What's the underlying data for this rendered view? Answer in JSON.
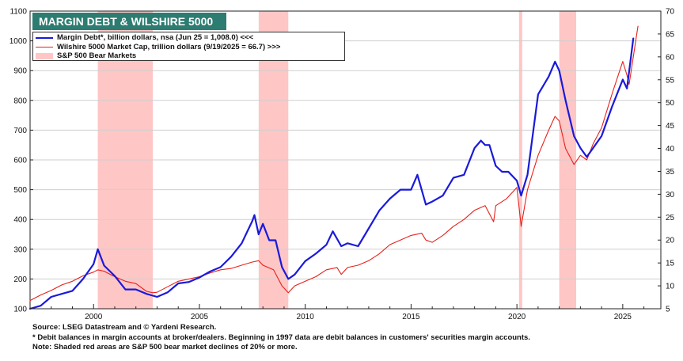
{
  "title": "MARGIN DEBT & WILSHIRE 5000",
  "legend": {
    "margin_debt": "Margin Debt*, billion dollars, nsa (Jun 25 = 1,008.0) <<<",
    "wilshire": "Wilshire 5000 Market Cap, trillion dollars  (9/19/2025 = 66.7) >>>",
    "bear": "S&P 500 Bear Markets"
  },
  "footnotes": {
    "source": "Source: LSEG Datastream and © Yardeni Research.",
    "note1": "* Debit balances in margin accounts at broker/dealers. Beginning in 1997 data are debit balances in customers' securities margin accounts.",
    "note2": "Note: Shaded red areas are S&P 500 bear market declines of 20% or more."
  },
  "colors": {
    "margin_debt": "#1a1adb",
    "wilshire": "#e8201a",
    "bear_shade": "#ffc6c6",
    "title_bg": "#2d7c71"
  },
  "chart_data": {
    "type": "line",
    "title": "MARGIN DEBT & WILSHIRE 5000",
    "x_axis": {
      "range": [
        1997.0,
        2026.8
      ],
      "ticks": [
        2000,
        2005,
        2010,
        2015,
        2020,
        2025
      ]
    },
    "y_left": {
      "range": [
        100,
        1100
      ],
      "ticks": [
        100,
        200,
        300,
        400,
        500,
        600,
        700,
        800,
        900,
        1000,
        1100
      ]
    },
    "y_right": {
      "range": [
        5,
        70
      ],
      "ticks": [
        5,
        10,
        15,
        20,
        25,
        30,
        35,
        40,
        45,
        50,
        55,
        60,
        65,
        70
      ]
    },
    "bear_markets": [
      [
        2000.2,
        2002.8
      ],
      [
        2007.8,
        2009.2
      ],
      [
        2020.1,
        2020.25
      ],
      [
        2022.0,
        2022.8
      ]
    ],
    "series": [
      {
        "name": "Margin Debt*, billion dollars, nsa (Jun 25 = 1,008.0) <<<",
        "axis": "left",
        "points": [
          [
            1997.0,
            100
          ],
          [
            1997.5,
            110
          ],
          [
            1998.0,
            140
          ],
          [
            1998.5,
            150
          ],
          [
            1999.0,
            160
          ],
          [
            1999.5,
            200
          ],
          [
            2000.0,
            250
          ],
          [
            2000.2,
            300
          ],
          [
            2000.5,
            245
          ],
          [
            2001.0,
            210
          ],
          [
            2001.5,
            165
          ],
          [
            2002.0,
            165
          ],
          [
            2002.5,
            150
          ],
          [
            2003.0,
            140
          ],
          [
            2003.5,
            155
          ],
          [
            2004.0,
            185
          ],
          [
            2004.5,
            190
          ],
          [
            2005.0,
            205
          ],
          [
            2005.5,
            225
          ],
          [
            2006.0,
            240
          ],
          [
            2006.5,
            275
          ],
          [
            2007.0,
            320
          ],
          [
            2007.5,
            395
          ],
          [
            2007.6,
            415
          ],
          [
            2007.8,
            350
          ],
          [
            2008.0,
            385
          ],
          [
            2008.3,
            330
          ],
          [
            2008.6,
            330
          ],
          [
            2008.9,
            240
          ],
          [
            2009.2,
            200
          ],
          [
            2009.5,
            215
          ],
          [
            2010.0,
            260
          ],
          [
            2010.5,
            285
          ],
          [
            2011.0,
            315
          ],
          [
            2011.3,
            360
          ],
          [
            2011.7,
            310
          ],
          [
            2012.0,
            320
          ],
          [
            2012.5,
            310
          ],
          [
            2013.0,
            370
          ],
          [
            2013.5,
            430
          ],
          [
            2014.0,
            470
          ],
          [
            2014.5,
            500
          ],
          [
            2015.0,
            500
          ],
          [
            2015.3,
            550
          ],
          [
            2015.7,
            450
          ],
          [
            2016.0,
            460
          ],
          [
            2016.5,
            480
          ],
          [
            2017.0,
            540
          ],
          [
            2017.5,
            550
          ],
          [
            2018.0,
            640
          ],
          [
            2018.3,
            665
          ],
          [
            2018.5,
            650
          ],
          [
            2018.7,
            650
          ],
          [
            2019.0,
            580
          ],
          [
            2019.3,
            560
          ],
          [
            2019.6,
            560
          ],
          [
            2020.0,
            530
          ],
          [
            2020.2,
            480
          ],
          [
            2020.5,
            550
          ],
          [
            2021.0,
            820
          ],
          [
            2021.5,
            880
          ],
          [
            2021.8,
            930
          ],
          [
            2022.0,
            900
          ],
          [
            2022.3,
            800
          ],
          [
            2022.7,
            680
          ],
          [
            2023.0,
            640
          ],
          [
            2023.3,
            610
          ],
          [
            2023.6,
            640
          ],
          [
            2024.0,
            680
          ],
          [
            2024.5,
            780
          ],
          [
            2025.0,
            870
          ],
          [
            2025.2,
            840
          ],
          [
            2025.5,
            1008
          ]
        ]
      },
      {
        "name": "Wilshire 5000 Market Cap, trillion dollars  (9/19/2025 = 66.7) >>>",
        "axis": "right",
        "points": [
          [
            1997.0,
            6.8
          ],
          [
            1997.5,
            8.0
          ],
          [
            1998.0,
            9.0
          ],
          [
            1998.5,
            10.2
          ],
          [
            1999.0,
            11.0
          ],
          [
            1999.5,
            12.2
          ],
          [
            2000.0,
            13.0
          ],
          [
            2000.2,
            13.5
          ],
          [
            2000.5,
            13.2
          ],
          [
            2001.0,
            12.0
          ],
          [
            2001.5,
            11.0
          ],
          [
            2002.0,
            10.5
          ],
          [
            2002.5,
            8.8
          ],
          [
            2002.8,
            8.5
          ],
          [
            2003.0,
            8.6
          ],
          [
            2003.5,
            9.8
          ],
          [
            2004.0,
            11.0
          ],
          [
            2004.5,
            11.5
          ],
          [
            2005.0,
            12.0
          ],
          [
            2005.5,
            12.8
          ],
          [
            2006.0,
            13.5
          ],
          [
            2006.5,
            13.8
          ],
          [
            2007.0,
            14.5
          ],
          [
            2007.5,
            15.2
          ],
          [
            2007.8,
            15.5
          ],
          [
            2008.0,
            14.5
          ],
          [
            2008.5,
            13.5
          ],
          [
            2008.9,
            10.0
          ],
          [
            2009.2,
            8.5
          ],
          [
            2009.5,
            10.0
          ],
          [
            2010.0,
            11.0
          ],
          [
            2010.5,
            12.0
          ],
          [
            2011.0,
            13.5
          ],
          [
            2011.5,
            14.0
          ],
          [
            2011.7,
            12.5
          ],
          [
            2012.0,
            14.0
          ],
          [
            2012.5,
            14.5
          ],
          [
            2013.0,
            15.5
          ],
          [
            2013.5,
            17.0
          ],
          [
            2014.0,
            19.0
          ],
          [
            2014.5,
            20.0
          ],
          [
            2015.0,
            21.0
          ],
          [
            2015.5,
            21.5
          ],
          [
            2015.7,
            20.0
          ],
          [
            2016.0,
            19.5
          ],
          [
            2016.5,
            21.0
          ],
          [
            2017.0,
            23.0
          ],
          [
            2017.5,
            24.5
          ],
          [
            2018.0,
            26.5
          ],
          [
            2018.5,
            27.5
          ],
          [
            2018.9,
            24.0
          ],
          [
            2019.0,
            27.5
          ],
          [
            2019.5,
            29.0
          ],
          [
            2020.0,
            31.5
          ],
          [
            2020.2,
            23.0
          ],
          [
            2020.5,
            31.0
          ],
          [
            2021.0,
            38.5
          ],
          [
            2021.5,
            44.0
          ],
          [
            2021.8,
            47.0
          ],
          [
            2022.0,
            46.0
          ],
          [
            2022.3,
            40.0
          ],
          [
            2022.7,
            36.5
          ],
          [
            2023.0,
            38.5
          ],
          [
            2023.3,
            37.5
          ],
          [
            2023.6,
            41.0
          ],
          [
            2024.0,
            44.5
          ],
          [
            2024.5,
            52.0
          ],
          [
            2025.0,
            59.0
          ],
          [
            2025.2,
            56.0
          ],
          [
            2025.3,
            54.0
          ],
          [
            2025.5,
            60.0
          ],
          [
            2025.72,
            66.7
          ]
        ]
      }
    ]
  }
}
